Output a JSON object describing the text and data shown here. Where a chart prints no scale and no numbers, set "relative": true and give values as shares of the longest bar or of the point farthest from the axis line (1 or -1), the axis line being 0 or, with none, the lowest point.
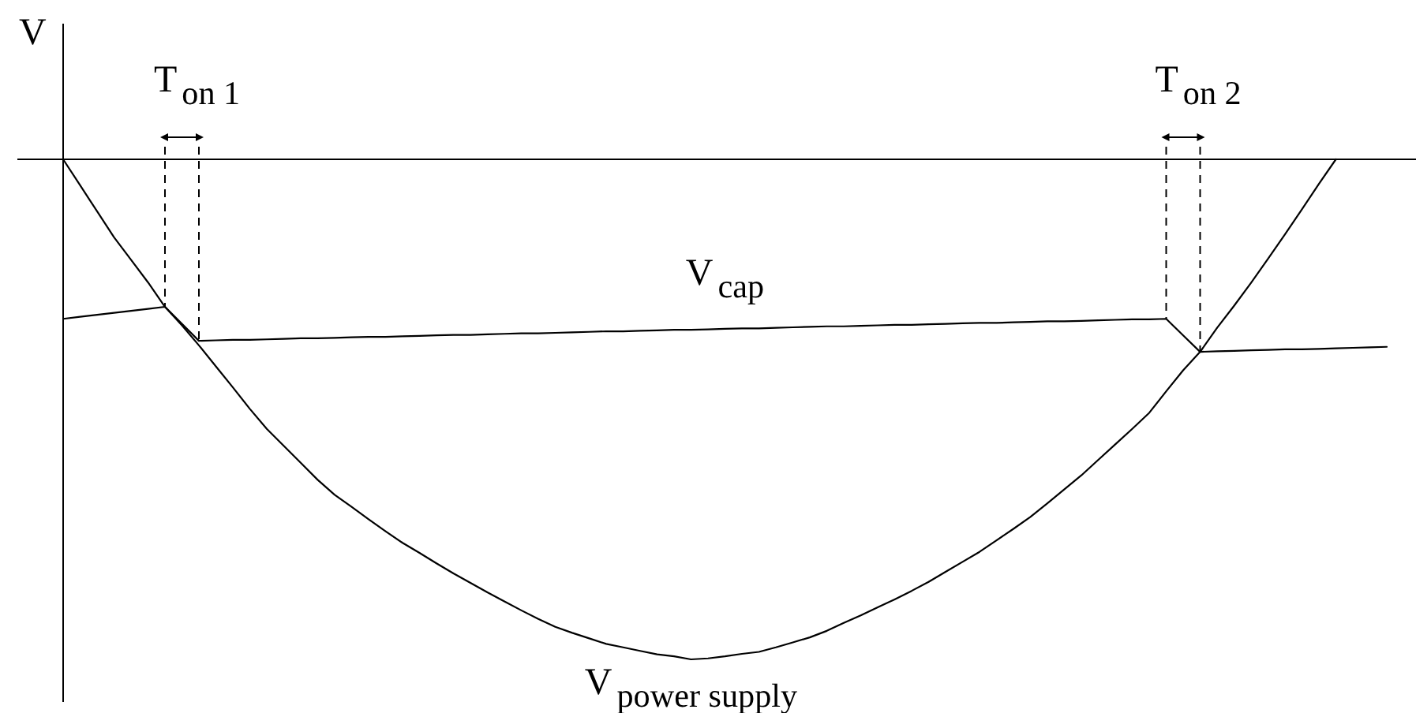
{
  "chart_data": {
    "type": "line",
    "ylabel": "V",
    "relative": true,
    "categories": [
      null,
      null,
      null,
      null,
      null,
      null,
      null,
      null,
      null,
      null,
      null,
      null,
      null,
      null,
      null,
      null,
      null,
      null,
      null,
      null,
      null,
      null,
      null,
      null,
      null,
      null,
      null,
      null,
      null,
      null,
      null,
      null,
      null,
      null,
      null,
      null,
      null,
      null,
      null,
      null,
      null,
      null,
      null,
      null,
      null,
      null,
      null,
      null,
      null,
      null,
      null,
      null,
      null,
      null,
      null,
      null,
      null,
      null,
      null,
      null,
      null,
      null,
      null,
      null,
      null,
      null,
      null,
      null,
      null,
      null,
      null,
      null,
      null,
      null,
      null,
      null,
      null,
      null,
      null
    ],
    "series": [
      {
        "name": "V$_{cap}$",
        "color": "#000000",
        "values": [
          -0.319,
          -0.315,
          -0.311,
          -0.307,
          -0.303,
          -0.299,
          -0.295,
          -0.329,
          -0.363,
          -0.362,
          -0.361,
          -0.361,
          -0.36,
          -0.359,
          -0.358,
          -0.358,
          -0.357,
          -0.356,
          -0.355,
          -0.355,
          -0.354,
          -0.353,
          -0.352,
          -0.351,
          -0.351,
          -0.35,
          -0.349,
          -0.348,
          -0.348,
          -0.347,
          -0.346,
          -0.345,
          -0.344,
          -0.344,
          -0.343,
          -0.342,
          -0.341,
          -0.341,
          -0.34,
          -0.339,
          -0.338,
          -0.338,
          -0.337,
          -0.336,
          -0.335,
          -0.334,
          -0.334,
          -0.333,
          -0.332,
          -0.331,
          -0.331,
          -0.33,
          -0.329,
          -0.328,
          -0.327,
          -0.327,
          -0.326,
          -0.325,
          -0.324,
          -0.324,
          -0.323,
          -0.322,
          -0.321,
          -0.32,
          -0.32,
          -0.319,
          -0.352,
          -0.385,
          -0.384,
          -0.383,
          -0.382,
          -0.381,
          -0.38,
          -0.38,
          -0.379,
          -0.378,
          -0.377,
          -0.376,
          -0.375
        ]
      },
      {
        "name": "V$_{power supply}$",
        "color": "#000000",
        "values": [
          0,
          -0.052,
          -0.104,
          -0.156,
          -0.201,
          -0.246,
          -0.295,
          -0.332,
          -0.372,
          -0.414,
          -0.456,
          -0.499,
          -0.539,
          -0.573,
          -0.607,
          -0.641,
          -0.671,
          -0.695,
          -0.72,
          -0.744,
          -0.767,
          -0.787,
          -0.808,
          -0.828,
          -0.847,
          -0.866,
          -0.884,
          -0.902,
          -0.919,
          -0.935,
          -0.947,
          -0.958,
          -0.969,
          -0.976,
          -0.983,
          -0.99,
          -0.994,
          -1,
          -0.998,
          -0.994,
          -0.989,
          -0.985,
          -0.976,
          -0.966,
          -0.956,
          -0.943,
          -0.927,
          -0.912,
          -0.896,
          -0.88,
          -0.863,
          -0.845,
          -0.825,
          -0.805,
          -0.785,
          -0.762,
          -0.739,
          -0.715,
          -0.688,
          -0.66,
          -0.632,
          -0.601,
          -0.57,
          -0.539,
          -0.507,
          -0.464,
          -0.422,
          -0.385,
          -0.337,
          -0.293,
          -0.247,
          -0.199,
          -0.15,
          -0.1,
          -0.049,
          0,
          null,
          null,
          null
        ]
      }
    ],
    "annotations": [
      "T$_{on 1}$",
      "T$_{on 2}$"
    ]
  }
}
